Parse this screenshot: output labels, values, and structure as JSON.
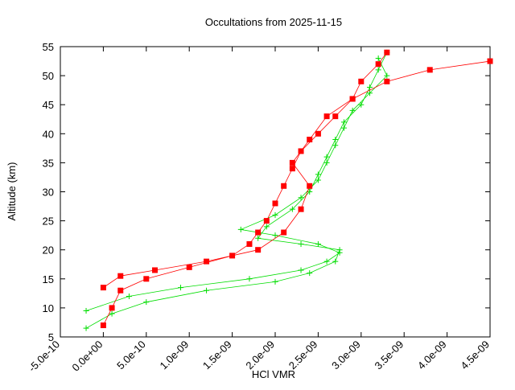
{
  "chart_data": {
    "type": "scatter-line",
    "title": "Occultations from 2025-11-15",
    "x_label": "HCl VMR",
    "y_label": "Altitude (km)",
    "xlim": [
      -5e-10,
      4.5e-09
    ],
    "xticks": [
      {
        "value": -5e-10,
        "label": "-5.0e-10"
      },
      {
        "value": 0,
        "label": "0.0e+00"
      },
      {
        "value": 5e-10,
        "label": "5.0e-10"
      },
      {
        "value": 1e-09,
        "label": "1.0e-09"
      },
      {
        "value": 1.5e-09,
        "label": "1.5e-09"
      },
      {
        "value": 2e-09,
        "label": "2.0e-09"
      },
      {
        "value": 2.5e-09,
        "label": "2.5e-09"
      },
      {
        "value": 3e-09,
        "label": "3.0e-09"
      },
      {
        "value": 3.5e-09,
        "label": "3.5e-09"
      },
      {
        "value": 4e-09,
        "label": "4.0e-09"
      },
      {
        "value": 4.5e-09,
        "label": "4.5e-09"
      }
    ],
    "ylim": [
      5,
      55
    ],
    "yticks": [
      5,
      10,
      15,
      20,
      25,
      30,
      35,
      40,
      45,
      50,
      55
    ],
    "series": [
      {
        "color": "#00dd00",
        "marker": "plus",
        "x": [
          -2e-10,
          1e-10,
          5e-10,
          1.2e-09,
          2e-09,
          2.4e-09,
          2.7e-09,
          2.75e-09,
          2.3e-09,
          1.8e-09,
          1.9e-09,
          2.2e-09,
          2.4e-09,
          2.5e-09,
          2.6e-09,
          2.7e-09,
          2.8e-09,
          3e-09,
          3.1e-09,
          3.2e-09,
          3.3e-09
        ],
        "values": [
          6.5,
          9,
          11,
          13,
          14.5,
          16,
          18,
          20,
          21,
          22,
          24,
          27,
          30,
          33,
          36,
          39,
          42,
          45,
          48,
          51,
          54
        ]
      },
      {
        "color": "#00dd00",
        "marker": "plus",
        "x": [
          -2e-10,
          3e-10,
          9e-10,
          1.7e-09,
          2.3e-09,
          2.6e-09,
          2.75e-09,
          2.5e-09,
          2e-09,
          1.6e-09,
          2e-09,
          2.3e-09,
          2.5e-09,
          2.6e-09,
          2.7e-09,
          2.8e-09,
          2.9e-09,
          3.1e-09,
          3.3e-09,
          3.2e-09
        ],
        "values": [
          9.5,
          12,
          13.5,
          15,
          16.5,
          18,
          19.5,
          21,
          22.5,
          23.5,
          26,
          29,
          32,
          35,
          38,
          41,
          44,
          47,
          50,
          53
        ]
      },
      {
        "color": "#ff0000",
        "marker": "square",
        "x": [
          0,
          1e-10,
          2e-10,
          5e-10,
          1e-09,
          1.5e-09,
          1.7e-09,
          1.8e-09,
          1.9e-09,
          2e-09,
          2.1e-09,
          2.2e-09,
          2.3e-09,
          2.5e-09,
          2.7e-09,
          2.9e-09,
          3e-09,
          3.2e-09,
          3.3e-09
        ],
        "values": [
          7,
          10,
          13,
          15,
          17,
          19,
          21,
          23,
          25,
          28,
          31,
          34,
          37,
          40,
          43,
          46,
          49,
          52,
          54
        ]
      },
      {
        "color": "#ff0000",
        "marker": "square",
        "x": [
          0,
          2e-10,
          6e-10,
          1.2e-09,
          1.8e-09,
          2.1e-09,
          2.3e-09,
          2.4e-09,
          2.2e-09,
          2.4e-09,
          2.6e-09,
          2.9e-09,
          3.3e-09,
          3.8e-09,
          4.5e-09
        ],
        "values": [
          13.5,
          15.5,
          16.5,
          18,
          20,
          23,
          27,
          31,
          35,
          39,
          43,
          46,
          49,
          51,
          52.5
        ]
      }
    ]
  }
}
